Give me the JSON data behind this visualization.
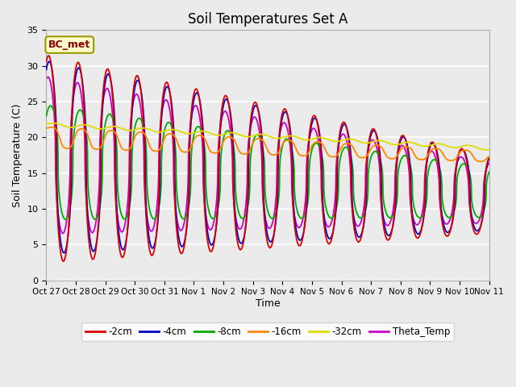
{
  "title": "Soil Temperatures Set A",
  "xlabel": "Time",
  "ylabel": "Soil Temperature (C)",
  "ylim": [
    0,
    35
  ],
  "background_color": "#ebebeb",
  "annotation_text": "BC_met",
  "annotation_bg": "#ffffcc",
  "annotation_text_color": "#880000",
  "legend_entries": [
    "-2cm",
    "-4cm",
    "-8cm",
    "-16cm",
    "-32cm",
    "Theta_Temp"
  ],
  "line_colors": [
    "#dd0000",
    "#0000cc",
    "#00aa00",
    "#ff8800",
    "#dddd00",
    "#cc00cc"
  ],
  "xtick_labels": [
    "Oct 27",
    "Oct 28",
    "Oct 29",
    "Oct 30",
    "Oct 31",
    "Nov 1",
    "Nov 2",
    "Nov 3",
    "Nov 4",
    "Nov 5",
    "Nov 6",
    "Nov 7",
    "Nov 8",
    "Nov 9",
    "Nov 10",
    "Nov 11"
  ],
  "ytick_vals": [
    0,
    5,
    10,
    15,
    20,
    25,
    30,
    35
  ]
}
